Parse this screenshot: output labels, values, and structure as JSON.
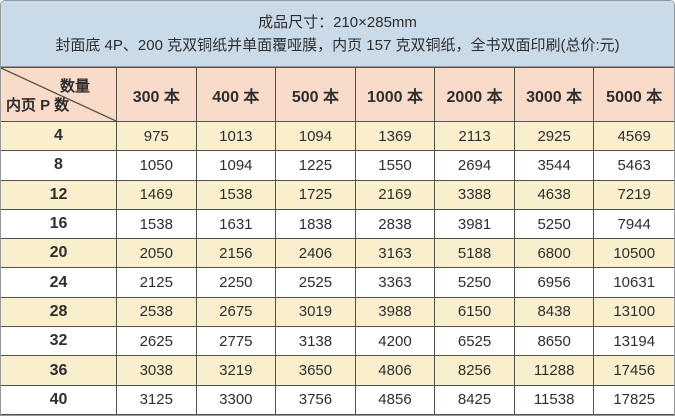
{
  "header": {
    "line1": "成品尺寸：210×285mm",
    "line2": "封面底 4P、200 克双铜纸并单面覆哑膜，内页 157 克双铜纸，全书双面印刷(总价:元)"
  },
  "chart_data": {
    "type": "table",
    "title": "成品尺寸：210×285mm",
    "subtitle": "封面底 4P、200 克双铜纸并单面覆哑膜，内页 157 克双铜纸，全书双面印刷(总价:元)",
    "corner_top_right_label": "数量",
    "corner_bottom_left_label": "内页 P 数",
    "columns": [
      "300 本",
      "400 本",
      "500 本",
      "1000 本",
      "2000 本",
      "3000 本",
      "5000 本"
    ],
    "rows": [
      {
        "pages": "4",
        "prices": [
          "975",
          "1013",
          "1094",
          "1369",
          "2113",
          "2925",
          "4569"
        ]
      },
      {
        "pages": "8",
        "prices": [
          "1050",
          "1094",
          "1225",
          "1550",
          "2694",
          "3544",
          "5463"
        ]
      },
      {
        "pages": "12",
        "prices": [
          "1469",
          "1538",
          "1725",
          "2169",
          "3388",
          "4638",
          "7219"
        ]
      },
      {
        "pages": "16",
        "prices": [
          "1538",
          "1631",
          "1838",
          "2838",
          "3981",
          "5250",
          "7944"
        ]
      },
      {
        "pages": "20",
        "prices": [
          "2050",
          "2156",
          "2406",
          "3163",
          "5188",
          "6800",
          "10500"
        ]
      },
      {
        "pages": "24",
        "prices": [
          "2125",
          "2250",
          "2525",
          "3363",
          "5250",
          "6956",
          "10631"
        ]
      },
      {
        "pages": "28",
        "prices": [
          "2538",
          "2675",
          "3019",
          "3988",
          "6150",
          "8438",
          "13100"
        ]
      },
      {
        "pages": "32",
        "prices": [
          "2625",
          "2775",
          "3138",
          "4200",
          "6525",
          "8650",
          "13194"
        ]
      },
      {
        "pages": "36",
        "prices": [
          "3038",
          "3219",
          "3650",
          "4806",
          "8256",
          "11288",
          "17456"
        ]
      },
      {
        "pages": "40",
        "prices": [
          "3125",
          "3300",
          "3756",
          "4856",
          "8425",
          "11538",
          "17825"
        ]
      }
    ]
  },
  "colors": {
    "panel_bg": "#c9dbe8",
    "header_bg": "#f8dcc9",
    "row_alt_bg": "#f9efcd",
    "row_bg": "#ffffff",
    "grid_line": "#54524b",
    "frame": "#96999b",
    "text": "#2e2e2e"
  }
}
